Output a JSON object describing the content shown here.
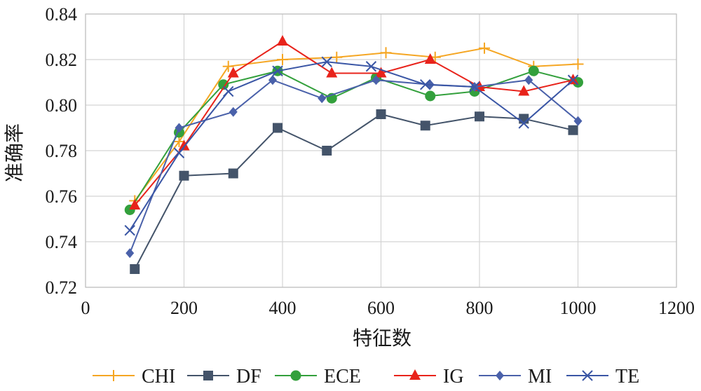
{
  "chart_data": {
    "type": "line",
    "xlabel": "特征数",
    "ylabel": "准确率",
    "xlim": [
      0,
      1200
    ],
    "ylim": [
      0.72,
      0.84
    ],
    "x_ticks": [
      "0",
      "200",
      "400",
      "600",
      "800",
      "1000",
      "1200"
    ],
    "y_ticks": [
      "0.72",
      "0.74",
      "0.76",
      "0.78",
      "0.80",
      "0.82",
      "0.84"
    ],
    "grid": "major",
    "legend": "bottom",
    "series": [
      {
        "name": "CHI",
        "color": "#F5A623",
        "marker": "plus",
        "x": [
          100,
          190,
          290,
          400,
          510,
          610,
          710,
          810,
          910,
          1000
        ],
        "y": [
          0.758,
          0.784,
          0.817,
          0.82,
          0.821,
          0.823,
          0.821,
          0.825,
          0.817,
          0.818
        ]
      },
      {
        "name": "DF",
        "color": "#44546A",
        "marker": "square",
        "x": [
          100,
          200,
          300,
          390,
          490,
          600,
          690,
          800,
          890,
          990
        ],
        "y": [
          0.728,
          0.769,
          0.77,
          0.79,
          0.78,
          0.796,
          0.791,
          0.795,
          0.794,
          0.789
        ]
      },
      {
        "name": "ECE",
        "color": "#33A03C",
        "marker": "circle",
        "x": [
          90,
          190,
          280,
          390,
          500,
          590,
          700,
          790,
          910,
          1000
        ],
        "y": [
          0.754,
          0.788,
          0.809,
          0.815,
          0.803,
          0.812,
          0.804,
          0.806,
          0.815,
          0.81
        ]
      },
      {
        "name": "IG",
        "color": "#E8231B",
        "marker": "triangle",
        "x": [
          100,
          200,
          300,
          400,
          500,
          600,
          700,
          800,
          890,
          990
        ],
        "y": [
          0.756,
          0.782,
          0.814,
          0.828,
          0.814,
          0.814,
          0.82,
          0.808,
          0.806,
          0.811
        ]
      },
      {
        "name": "MI",
        "color": "#4A61AA",
        "marker": "diamond",
        "x": [
          90,
          190,
          300,
          380,
          480,
          590,
          700,
          790,
          900,
          1000
        ],
        "y": [
          0.735,
          0.79,
          0.797,
          0.811,
          0.803,
          0.811,
          0.809,
          0.808,
          0.811,
          0.793
        ]
      },
      {
        "name": "TE",
        "color": "#3A56A5",
        "marker": "x",
        "x": [
          90,
          190,
          290,
          390,
          490,
          580,
          690,
          790,
          890,
          990
        ],
        "y": [
          0.745,
          0.779,
          0.806,
          0.815,
          0.819,
          0.817,
          0.809,
          0.808,
          0.792,
          0.811
        ]
      }
    ]
  }
}
